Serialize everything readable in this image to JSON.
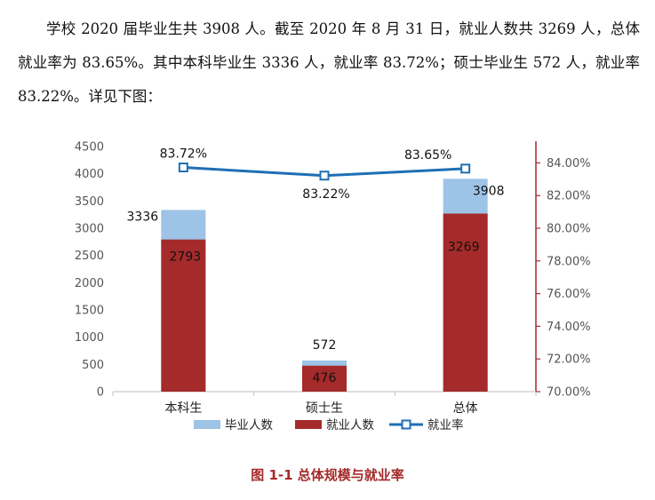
{
  "paragraph": "学校 2020 届毕业生共 3908 人。截至 2020 年 8 月 31 日，就业人数共 3269 人，总体就业率为 83.65%。其中本科毕业生 3336 人，就业率 83.72%；硕士毕业生 572 人，就业率 83.22%。详见下图：",
  "caption": "图 1-1    总体规模与就业率",
  "colors": {
    "graduates": "#9dc3e6",
    "employed": "#a52a2a",
    "rate": "#1f6fb5",
    "right_axis": "#a52a2a"
  },
  "chart_data": {
    "type": "bar",
    "categories": [
      "本科生",
      "硕士生",
      "总体"
    ],
    "series": [
      {
        "name": "毕业人数",
        "values": [
          3336,
          572,
          3908
        ],
        "labels": [
          "3336",
          "572",
          "3908"
        ]
      },
      {
        "name": "就业人数",
        "values": [
          2793,
          476,
          3269
        ],
        "labels": [
          "2793",
          "476",
          "3269"
        ]
      },
      {
        "name": "就业率",
        "type": "line",
        "axis": "right",
        "values": [
          83.72,
          83.22,
          83.65
        ],
        "labels": [
          "83.72%",
          "83.22%",
          "83.65%"
        ]
      }
    ],
    "ylim": [
      0,
      4500
    ],
    "yticks": [
      "0",
      "500",
      "1000",
      "1500",
      "2000",
      "2500",
      "3000",
      "3500",
      "4000",
      "4500"
    ],
    "y2lim": [
      70,
      85
    ],
    "y2ticks": [
      "70.00%",
      "72.00%",
      "74.00%",
      "76.00%",
      "78.00%",
      "80.00%",
      "82.00%",
      "84.00%"
    ],
    "legend": [
      "毕业人数",
      "就业人数",
      "就业率"
    ]
  }
}
